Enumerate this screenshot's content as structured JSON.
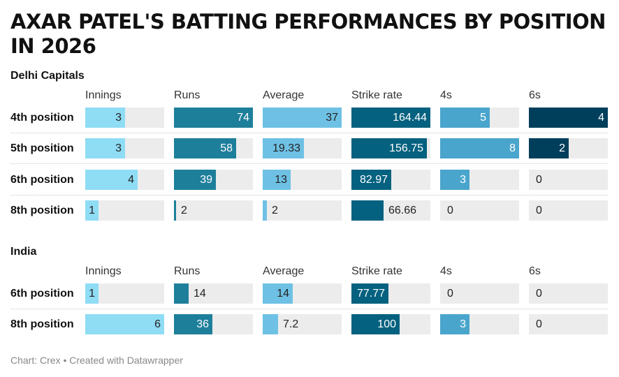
{
  "title": "AXAR PATEL'S BATTING PERFORMANCES BY POSITION IN 2026",
  "footer": "Chart: Crex • Created with Datawrapper",
  "colors": {
    "Innings": "#8fdcf5",
    "Runs": "#1e7f9b",
    "Average": "#6ec1e4",
    "Strike rate": "#04617f",
    "4s": "#4aa5cc",
    "6s": "#003f5c",
    "track": "#ececec"
  },
  "chart_data": {
    "type": "table",
    "columns": [
      "Innings",
      "Runs",
      "Average",
      "Strike rate",
      "4s",
      "6s"
    ],
    "column_max": [
      6,
      74,
      37,
      164.44,
      8,
      4
    ],
    "groups": [
      {
        "name": "Delhi Capitals",
        "rows": [
          {
            "label": "4th position",
            "values": [
              "3",
              "74",
              "37",
              "164.44",
              "5",
              "4"
            ]
          },
          {
            "label": "5th position",
            "values": [
              "3",
              "58",
              "19.33",
              "156.75",
              "8",
              "2"
            ]
          },
          {
            "label": "6th position",
            "values": [
              "4",
              "39",
              "13",
              "82.97",
              "3",
              "0"
            ]
          },
          {
            "label": "8th position",
            "values": [
              "1",
              "2",
              "2",
              "66.66",
              "0",
              "0"
            ]
          }
        ]
      },
      {
        "name": "India",
        "rows": [
          {
            "label": "6th position",
            "values": [
              "1",
              "14",
              "14",
              "77.77",
              "0",
              "0"
            ]
          },
          {
            "label": "8th position",
            "values": [
              "6",
              "36",
              "7.2",
              "100",
              "3",
              "0"
            ]
          }
        ]
      }
    ]
  }
}
